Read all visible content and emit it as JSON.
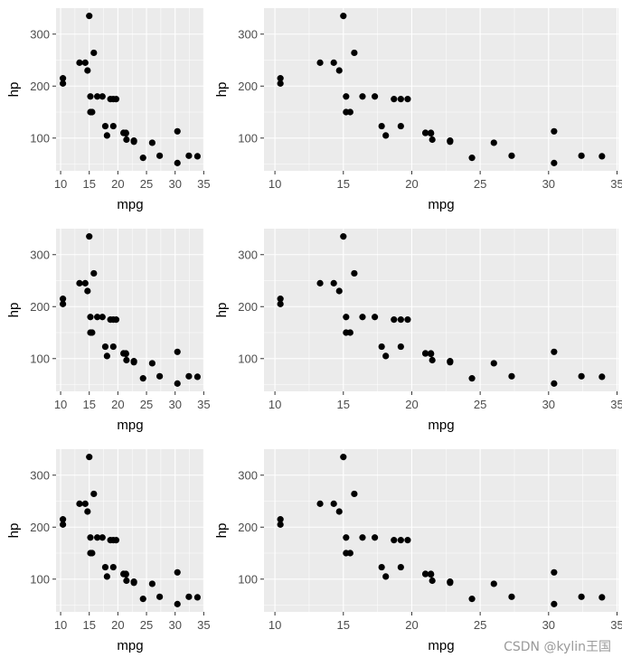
{
  "watermark": "CSDN @kylin王国",
  "chart_data": {
    "type": "scatter",
    "layout": "3 rows x 2 columns of panels; all panels show the same data",
    "xlabel": "mpg",
    "ylabel": "hp",
    "points": [
      {
        "x": 21.0,
        "y": 110
      },
      {
        "x": 21.0,
        "y": 110
      },
      {
        "x": 22.8,
        "y": 93
      },
      {
        "x": 21.4,
        "y": 110
      },
      {
        "x": 18.7,
        "y": 175
      },
      {
        "x": 18.1,
        "y": 105
      },
      {
        "x": 14.3,
        "y": 245
      },
      {
        "x": 24.4,
        "y": 62
      },
      {
        "x": 22.8,
        "y": 95
      },
      {
        "x": 19.2,
        "y": 123
      },
      {
        "x": 17.8,
        "y": 123
      },
      {
        "x": 16.4,
        "y": 180
      },
      {
        "x": 17.3,
        "y": 180
      },
      {
        "x": 15.2,
        "y": 180
      },
      {
        "x": 10.4,
        "y": 205
      },
      {
        "x": 10.4,
        "y": 215
      },
      {
        "x": 14.7,
        "y": 230
      },
      {
        "x": 32.4,
        "y": 66
      },
      {
        "x": 30.4,
        "y": 52
      },
      {
        "x": 33.9,
        "y": 65
      },
      {
        "x": 21.5,
        "y": 97
      },
      {
        "x": 15.5,
        "y": 150
      },
      {
        "x": 15.2,
        "y": 150
      },
      {
        "x": 13.3,
        "y": 245
      },
      {
        "x": 19.2,
        "y": 175
      },
      {
        "x": 27.3,
        "y": 66
      },
      {
        "x": 26.0,
        "y": 91
      },
      {
        "x": 30.4,
        "y": 113
      },
      {
        "x": 15.8,
        "y": 264
      },
      {
        "x": 19.7,
        "y": 175
      },
      {
        "x": 15.0,
        "y": 335
      },
      {
        "x": 21.4,
        "y": 109
      }
    ],
    "xlim": [
      9.2,
      35.1
    ],
    "ylim": [
      37,
      350
    ],
    "x_ticks": [
      10,
      15,
      20,
      25,
      30,
      35
    ],
    "y_ticks": [
      100,
      200,
      300
    ],
    "grid": true
  }
}
